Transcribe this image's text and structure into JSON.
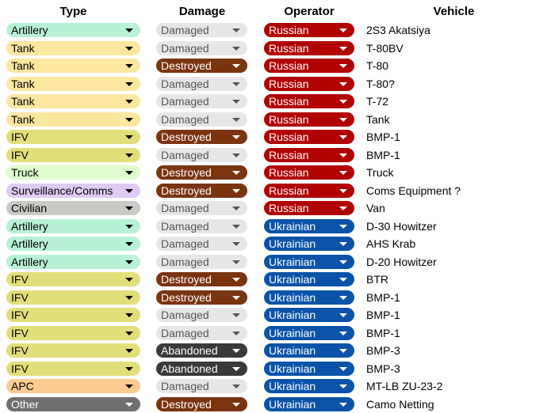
{
  "headers": {
    "type": "Type",
    "damage": "Damage",
    "operator": "Operator",
    "vehicle": "Vehicle"
  },
  "colors": {
    "type": {
      "Artillery": "#b8f2d6",
      "Tank": "#fce7a1",
      "IFV": "#e2df7a",
      "Truck": "#ddfbcd",
      "Surveillance/Comms": "#dfcbf5",
      "Civilian": "#c9cac5",
      "APC": "#fccb92",
      "Other": "#6f6f6f"
    },
    "type_text": {
      "Other": "#ffffff"
    }
  },
  "rows": [
    {
      "type": "Artillery",
      "damage": "Damaged",
      "operator": "Russian",
      "vehicle": "2S3 Akatsiya"
    },
    {
      "type": "Tank",
      "damage": "Damaged",
      "operator": "Russian",
      "vehicle": "T-80BV"
    },
    {
      "type": "Tank",
      "damage": "Destroyed",
      "operator": "Russian",
      "vehicle": "T-80"
    },
    {
      "type": "Tank",
      "damage": "Damaged",
      "operator": "Russian",
      "vehicle": "T-80?"
    },
    {
      "type": "Tank",
      "damage": "Damaged",
      "operator": "Russian",
      "vehicle": "T-72"
    },
    {
      "type": "Tank",
      "damage": "Damaged",
      "operator": "Russian",
      "vehicle": "Tank"
    },
    {
      "type": "IFV",
      "damage": "Destroyed",
      "operator": "Russian",
      "vehicle": "BMP-1"
    },
    {
      "type": "IFV",
      "damage": "Damaged",
      "operator": "Russian",
      "vehicle": "BMP-1"
    },
    {
      "type": "Truck",
      "damage": "Destroyed",
      "operator": "Russian",
      "vehicle": "Truck"
    },
    {
      "type": "Surveillance/Comms",
      "damage": "Destroyed",
      "operator": "Russian",
      "vehicle": "Coms Equipment ?"
    },
    {
      "type": "Civilian",
      "damage": "Damaged",
      "operator": "Russian",
      "vehicle": "Van"
    },
    {
      "type": "Artillery",
      "damage": "Damaged",
      "operator": "Ukrainian",
      "vehicle": "D-30 Howitzer"
    },
    {
      "type": "Artillery",
      "damage": "Damaged",
      "operator": "Ukrainian",
      "vehicle": "AHS Krab"
    },
    {
      "type": "Artillery",
      "damage": "Damaged",
      "operator": "Ukrainian",
      "vehicle": "D-20 Howitzer"
    },
    {
      "type": "IFV",
      "damage": "Destroyed",
      "operator": "Ukrainian",
      "vehicle": "BTR"
    },
    {
      "type": "IFV",
      "damage": "Destroyed",
      "operator": "Ukrainian",
      "vehicle": "BMP-1"
    },
    {
      "type": "IFV",
      "damage": "Damaged",
      "operator": "Ukrainian",
      "vehicle": "BMP-1"
    },
    {
      "type": "IFV",
      "damage": "Damaged",
      "operator": "Ukrainian",
      "vehicle": "BMP-1"
    },
    {
      "type": "IFV",
      "damage": "Abandoned",
      "operator": "Ukrainian",
      "vehicle": "BMP-3"
    },
    {
      "type": "IFV",
      "damage": "Abandoned",
      "operator": "Ukrainian",
      "vehicle": "BMP-3"
    },
    {
      "type": "APC",
      "damage": "Damaged",
      "operator": "Ukrainian",
      "vehicle": "MT-LB ZU-23-2"
    },
    {
      "type": "Other",
      "damage": "Destroyed",
      "operator": "Ukrainian",
      "vehicle": "Camo Netting"
    }
  ]
}
